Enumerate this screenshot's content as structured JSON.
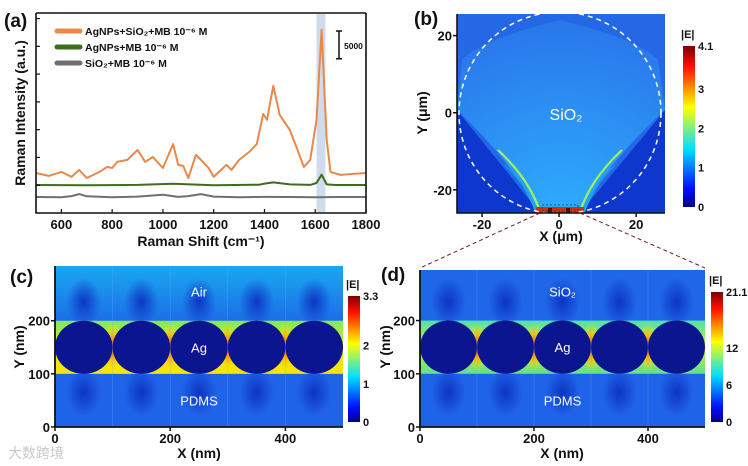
{
  "panel_labels": [
    "(a)",
    "(b)",
    "(c)",
    "(d)"
  ],
  "watermark": "大数跨境",
  "colors": {
    "orange": "#e8894a",
    "green": "#3f6d1f",
    "gray": "#6f6f6f",
    "highlight": "#c5d6ea",
    "field_blue": "#1f5fe6",
    "ag_navy": "#0b1590"
  },
  "chart_data": [
    {
      "type": "line",
      "xlabel": "Raman Shift (cm⁻¹)",
      "ylabel": "Raman Intensity (a.u.)",
      "xlim": [
        500,
        1800
      ],
      "ylim": [
        0,
        36000
      ],
      "xticks": [
        "600",
        "800",
        "1000",
        "1200",
        "1400",
        "1600",
        "1800"
      ],
      "xtick_values": [
        600,
        800,
        1000,
        1200,
        1400,
        1600,
        1800
      ],
      "scale_bar_label": "5000",
      "scale_bar_value": 5000,
      "highlight_band": [
        1605,
        1640
      ],
      "legend_position": "top-left",
      "series": [
        {
          "name": "AgNPs+SiO₂+MB 10⁻⁶ M",
          "color": "#e8894a",
          "x": [
            500,
            550,
            600,
            640,
            670,
            700,
            750,
            780,
            800,
            820,
            860,
            900,
            930,
            960,
            1000,
            1040,
            1060,
            1080,
            1100,
            1130,
            1150,
            1180,
            1200,
            1250,
            1270,
            1300,
            1340,
            1370,
            1395,
            1410,
            1435,
            1460,
            1500,
            1530,
            1555,
            1580,
            1605,
            1625,
            1645,
            1660,
            1700,
            1750,
            1800
          ],
          "y": [
            7200,
            6670,
            7400,
            6500,
            7750,
            6300,
            7400,
            8300,
            8100,
            9200,
            9550,
            11350,
            9200,
            10100,
            8100,
            12400,
            8650,
            8470,
            6300,
            10450,
            9550,
            8100,
            6500,
            8650,
            7750,
            9550,
            11000,
            12400,
            17840,
            16750,
            22900,
            17650,
            14950,
            11350,
            8300,
            9550,
            16750,
            32970,
            13150,
            7400,
            6850,
            7030,
            7200
          ]
        },
        {
          "name": "AgNPs+MB 10⁻⁶ M",
          "color": "#3f6d1f",
          "x": [
            500,
            700,
            900,
            1040,
            1200,
            1380,
            1400,
            1435,
            1500,
            1580,
            1605,
            1625,
            1645,
            1680,
            1800
          ],
          "y": [
            5040,
            5000,
            5050,
            5250,
            5000,
            5100,
            5300,
            5500,
            5150,
            5050,
            5400,
            6900,
            5150,
            5040,
            5040
          ]
        },
        {
          "name": "SiO₂+MB 10⁻⁶ M",
          "color": "#6f6f6f",
          "x": [
            500,
            600,
            640,
            670,
            700,
            800,
            900,
            1000,
            1060,
            1100,
            1150,
            1200,
            1300,
            1400,
            1500,
            1600,
            1700,
            1800
          ],
          "y": [
            2880,
            2850,
            3050,
            3400,
            3000,
            2850,
            2950,
            3300,
            2900,
            3050,
            3400,
            2950,
            2850,
            2900,
            2880,
            2850,
            2880,
            2880
          ]
        }
      ]
    },
    {
      "type": "heatmap",
      "xlabel": "X (μm)",
      "ylabel": "Y (μm)",
      "xticks": [
        "-20",
        "0",
        "20"
      ],
      "xtick_values": [
        -20,
        0,
        20
      ],
      "yticks": [
        "20",
        "0",
        "-20"
      ],
      "ytick_values": [
        20,
        0,
        -20
      ],
      "xlim": [
        -26.5,
        27.5
      ],
      "ylim": [
        -26,
        25.6
      ],
      "region_label": "SiO₂",
      "colorbar_title": "|E|",
      "colorbar_ticks": [
        "4.1",
        "3",
        "2",
        "1",
        "0"
      ],
      "colorbar_values": [
        4.1,
        3,
        2,
        1,
        0
      ],
      "colorbar_range": [
        0,
        4.1
      ]
    },
    {
      "type": "heatmap",
      "xlabel": "X (nm)",
      "ylabel": "Y (nm)",
      "xticks": [
        "0",
        "200",
        "400"
      ],
      "xtick_values": [
        0,
        200,
        400
      ],
      "yticks": [
        "200",
        "100",
        "0"
      ],
      "ytick_values": [
        200,
        100,
        0
      ],
      "xlim": [
        0,
        500
      ],
      "ylim": [
        0,
        303
      ],
      "region_labels": [
        "Air",
        "Ag",
        "PDMS"
      ],
      "colorbar_title": "|E|",
      "colorbar_ticks": [
        "3.3",
        "2",
        "1",
        "0"
      ],
      "colorbar_values": [
        3.3,
        2,
        1,
        0
      ],
      "colorbar_range": [
        0,
        3.3
      ]
    },
    {
      "type": "heatmap",
      "xlabel": "X (nm)",
      "ylabel": "Y (nm)",
      "xticks": [
        "0",
        "200",
        "400"
      ],
      "xtick_values": [
        0,
        200,
        400
      ],
      "yticks": [
        "200",
        "100",
        "0"
      ],
      "ytick_values": [
        200,
        100,
        0
      ],
      "xlim": [
        0,
        500
      ],
      "ylim": [
        0,
        295
      ],
      "region_labels": [
        "SiO₂",
        "Ag",
        "PDMS"
      ],
      "colorbar_title": "|E|",
      "colorbar_ticks": [
        "21.1",
        "12",
        "6",
        "0"
      ],
      "colorbar_values": [
        21.1,
        12,
        6,
        0
      ],
      "colorbar_range": [
        0,
        21.1
      ]
    }
  ]
}
